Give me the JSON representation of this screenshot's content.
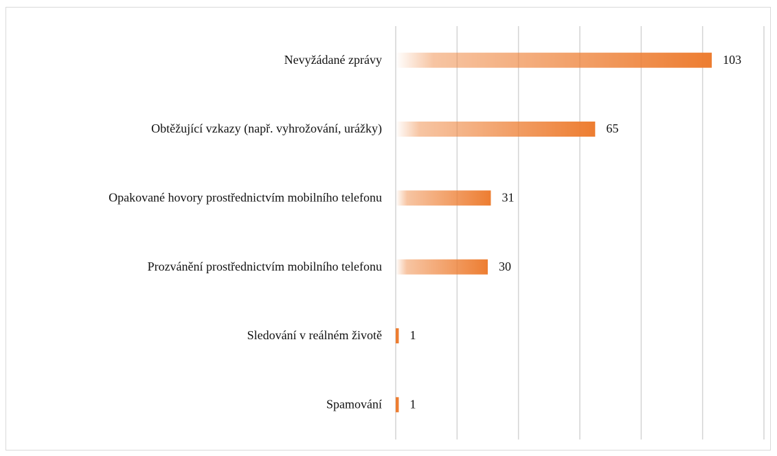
{
  "chart_data": {
    "type": "hbar",
    "categories": [
      "Nevyžádané zprávy",
      "Obtěžující vzkazy (např. vyhrožování, urážky)",
      "Opakované hovory prostřednictvím mobilního telefonu",
      "Prozvánění prostřednictvím mobilního telefonu",
      "Sledování v reálném životě",
      "Spamování"
    ],
    "values": [
      103,
      65,
      31,
      30,
      1,
      1
    ],
    "color": "#ed7d31",
    "xlim": [
      0,
      120
    ],
    "xticks": [
      0,
      20,
      40,
      60,
      80,
      100,
      120
    ],
    "grid": true
  }
}
